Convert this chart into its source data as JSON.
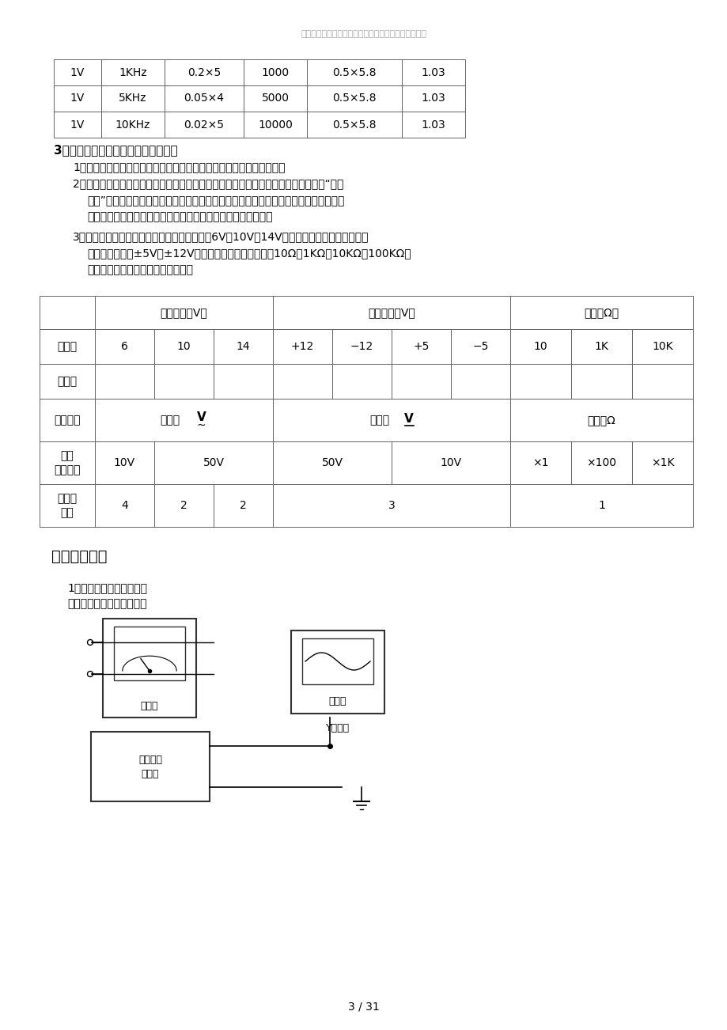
{
  "watermark": "真诚为您提供优质参考资料，若有不当之处，请指正。",
  "table1_rows": [
    [
      "1V",
      "1KHz",
      "0.2×5",
      "1000",
      "0.5×5.8",
      "1.03"
    ],
    [
      "1V",
      "5KHz",
      "0.05×4",
      "5000",
      "0.5×5.8",
      "1.03"
    ],
    [
      "1V",
      "10KHz",
      "0.02×5",
      "10000",
      "0.5×5.8",
      "1.03"
    ]
  ],
  "section3_title": "3．交流电压、直流电压及电阻的测量",
  "section5_title": "五、实验报告",
  "section5_q1": "1．画出各仪器的接线图。",
  "section5_a1": "答：各仪器的接线图如下：",
  "page_number": "3 / 31",
  "bg_color": "#ffffff",
  "text_color": "#000000"
}
